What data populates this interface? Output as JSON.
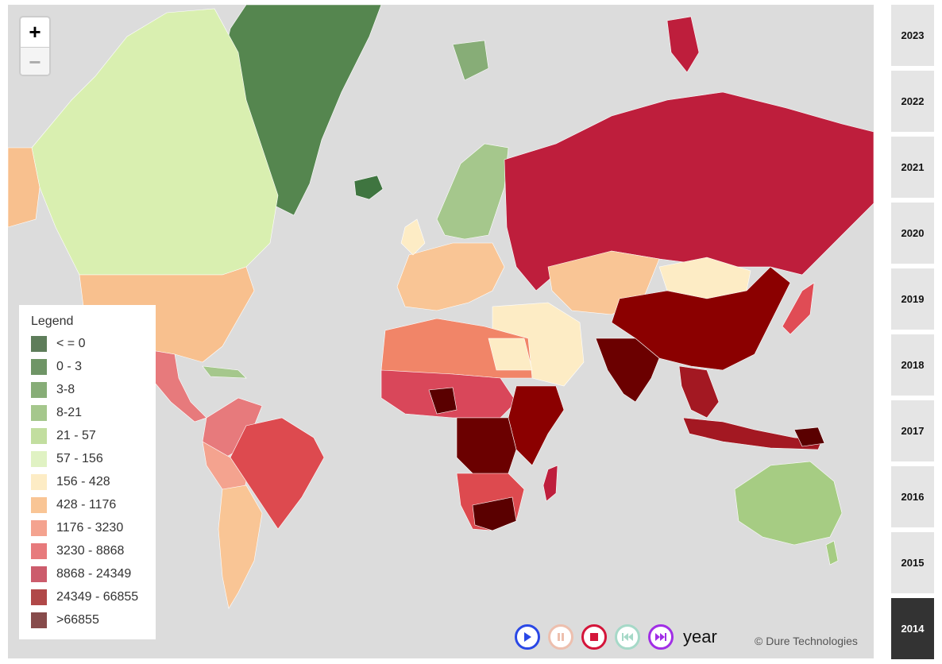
{
  "zoom": {
    "in_label": "+",
    "out_label": "−"
  },
  "legend": {
    "title": "Legend",
    "items": [
      {
        "label": "< = 0",
        "color": "#5e7d5a"
      },
      {
        "label": "0 - 3",
        "color": "#6f9566"
      },
      {
        "label": "3-8",
        "color": "#87ad77"
      },
      {
        "label": "8-21",
        "color": "#a5c78c"
      },
      {
        "label": "21 - 57",
        "color": "#c2de9f"
      },
      {
        "label": "57 - 156",
        "color": "#e0f2c3"
      },
      {
        "label": "156 - 428",
        "color": "#fdecc5"
      },
      {
        "label": "428 - 1176",
        "color": "#f9c595"
      },
      {
        "label": "1176 - 3230",
        "color": "#f4a38f"
      },
      {
        "label": "3230 - 8868",
        "color": "#e77a7c"
      },
      {
        "label": "8868 - 24349",
        "color": "#cc5c6c"
      },
      {
        "label": "24349 - 66855",
        "color": "#b04848"
      },
      {
        "label": ">66855",
        "color": "#874b4b"
      }
    ]
  },
  "controls": {
    "play_icon": "play-icon",
    "pause_icon": "pause-icon",
    "stop_icon": "stop-icon",
    "rewind_icon": "skip-back-icon",
    "forward_icon": "skip-forward-icon",
    "label": "year"
  },
  "credit": "© Dure Technologies",
  "years": [
    {
      "label": "2023",
      "active": false
    },
    {
      "label": "2022",
      "active": false
    },
    {
      "label": "2021",
      "active": false
    },
    {
      "label": "2020",
      "active": false
    },
    {
      "label": "2019",
      "active": false
    },
    {
      "label": "2018",
      "active": false
    },
    {
      "label": "2017",
      "active": false
    },
    {
      "label": "2016",
      "active": false
    },
    {
      "label": "2015",
      "active": false
    },
    {
      "label": "2014",
      "active": true
    }
  ],
  "colors": {
    "ocean": "#dcdcdc",
    "russia": "#be1e3c",
    "china": "#8b0000",
    "greenland": "#55864f",
    "canada": "#d9efb0",
    "usa": "#f8c08e",
    "brazil": "#dd4a4f",
    "australia": "#a6cc83"
  }
}
